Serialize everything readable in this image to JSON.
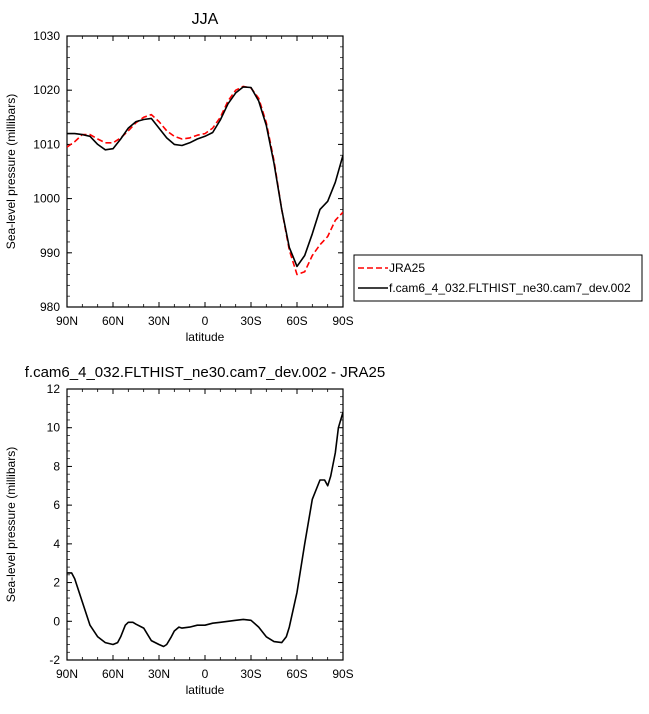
{
  "chart_data": [
    {
      "type": "line",
      "title": "JJA",
      "xlabel": "latitude",
      "ylabel": "Sea-level pressure (millibars)",
      "xlim": [
        90,
        -90
      ],
      "ylim": [
        980,
        1030
      ],
      "x_ticks": [
        90,
        60,
        30,
        0,
        -30,
        -60,
        -90
      ],
      "x_tick_labels": [
        "90N",
        "60N",
        "30N",
        "0",
        "30S",
        "60S",
        "90S"
      ],
      "y_ticks": [
        980,
        990,
        1000,
        1010,
        1020,
        1030
      ],
      "y_tick_labels": [
        "980",
        "990",
        "1000",
        "1010",
        "1020",
        "1030"
      ],
      "legend_position": "right",
      "series": [
        {
          "name": "JRA25",
          "color": "#ff0000",
          "dash": true,
          "x": [
            90,
            85,
            80,
            75,
            70,
            65,
            60,
            55,
            50,
            45,
            40,
            35,
            30,
            25,
            20,
            15,
            10,
            5,
            0,
            -5,
            -10,
            -15,
            -20,
            -25,
            -30,
            -35,
            -40,
            -45,
            -50,
            -55,
            -60,
            -65,
            -70,
            -75,
            -80,
            -85,
            -90
          ],
          "y": [
            1009.5,
            1010.5,
            1011.8,
            1011.8,
            1011.0,
            1010.3,
            1010.3,
            1011.2,
            1012.5,
            1014.0,
            1015.0,
            1015.5,
            1014.2,
            1012.5,
            1011.5,
            1011.0,
            1011.2,
            1011.7,
            1012.0,
            1013.0,
            1015.0,
            1018.0,
            1020.0,
            1020.7,
            1020.4,
            1018.5,
            1014.0,
            1007.0,
            998.0,
            990.5,
            986.0,
            986.5,
            989.5,
            991.5,
            993.0,
            996.0,
            997.5
          ]
        },
        {
          "name": "f.cam6_4_032.FLTHIST_ne30.cam7_dev.002",
          "color": "#000000",
          "dash": false,
          "x": [
            90,
            85,
            80,
            75,
            70,
            65,
            60,
            55,
            50,
            45,
            40,
            35,
            30,
            25,
            20,
            15,
            10,
            5,
            0,
            -5,
            -10,
            -15,
            -20,
            -25,
            -30,
            -35,
            -40,
            -45,
            -50,
            -55,
            -60,
            -65,
            -70,
            -75,
            -80,
            -85,
            -90
          ],
          "y": [
            1012.0,
            1012.0,
            1011.8,
            1011.5,
            1010.0,
            1009.0,
            1009.2,
            1011.0,
            1013.0,
            1014.2,
            1014.6,
            1014.8,
            1013.0,
            1011.2,
            1010.0,
            1009.8,
            1010.3,
            1011.0,
            1011.5,
            1012.2,
            1014.5,
            1017.5,
            1019.5,
            1020.6,
            1020.5,
            1018.0,
            1013.5,
            1006.5,
            998.0,
            991.0,
            987.5,
            989.5,
            993.5,
            998.0,
            999.5,
            1003.0,
            1008.0
          ]
        }
      ]
    },
    {
      "type": "line",
      "title": "f.cam6_4_032.FLTHIST_ne30.cam7_dev.002 - JRA25",
      "xlabel": "latitude",
      "ylabel": "Sea-level pressure (millibars)",
      "xlim": [
        90,
        -90
      ],
      "ylim": [
        -2,
        12
      ],
      "x_ticks": [
        90,
        60,
        30,
        0,
        -30,
        -60,
        -90
      ],
      "x_tick_labels": [
        "90N",
        "60N",
        "30N",
        "0",
        "30S",
        "60S",
        "90S"
      ],
      "y_ticks": [
        -2,
        0,
        2,
        4,
        6,
        8,
        10,
        12
      ],
      "y_tick_labels": [
        "-2",
        "0",
        "2",
        "4",
        "6",
        "8",
        "10",
        "12"
      ],
      "series": [
        {
          "color": "#000000",
          "dash": false,
          "x": [
            90,
            87,
            85,
            80,
            75,
            70,
            65,
            60,
            57,
            55,
            52,
            50,
            47,
            45,
            40,
            35,
            30,
            27,
            25,
            22,
            20,
            17,
            15,
            10,
            5,
            0,
            -5,
            -10,
            -15,
            -20,
            -25,
            -30,
            -35,
            -40,
            -45,
            -50,
            -53,
            -55,
            -60,
            -65,
            -70,
            -75,
            -78,
            -80,
            -82,
            -85,
            -87,
            -90
          ],
          "y": [
            2.5,
            2.5,
            2.2,
            1.0,
            -0.2,
            -0.8,
            -1.1,
            -1.2,
            -1.1,
            -0.8,
            -0.2,
            -0.05,
            -0.05,
            -0.15,
            -0.35,
            -1.0,
            -1.2,
            -1.3,
            -1.2,
            -0.8,
            -0.5,
            -0.3,
            -0.35,
            -0.3,
            -0.2,
            -0.2,
            -0.1,
            -0.05,
            0.0,
            0.05,
            0.1,
            0.05,
            -0.3,
            -0.8,
            -1.05,
            -1.1,
            -0.8,
            -0.3,
            1.5,
            4.0,
            6.3,
            7.3,
            7.3,
            7.0,
            7.5,
            8.7,
            10.0,
            10.8
          ]
        }
      ]
    }
  ]
}
